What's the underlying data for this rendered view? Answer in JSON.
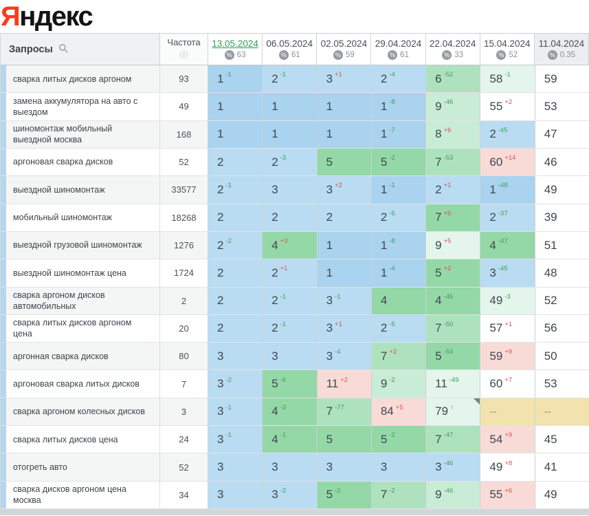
{
  "logo": {
    "red": "Я",
    "rest": "ндекс"
  },
  "header": {
    "queries_label": "Запросы",
    "frequency_label": "Частота",
    "icons": {
      "queries": "search-icon",
      "frequency": "globe-icon",
      "date_badge": "percent-icon"
    },
    "dates": [
      {
        "label": "13.05.2024",
        "value": "63",
        "active": true
      },
      {
        "label": "06.05.2024",
        "value": "61"
      },
      {
        "label": "02.05.2024",
        "value": "59"
      },
      {
        "label": "29.04.2024",
        "value": "61"
      },
      {
        "label": "22.04.2024",
        "value": "33"
      },
      {
        "label": "15.04.2024",
        "value": "52"
      },
      {
        "label": "11.04.2024",
        "value": "0.35",
        "muted": true
      }
    ]
  },
  "colors": {
    "accent_red": "#f93c1a",
    "active_date_green": "#2f9e52",
    "delta_up_green": "#3aa24f",
    "delta_down_red": "#d9534f",
    "cell_blue_pos1": "#a9d3ee",
    "cell_blue": "#b9dcf2",
    "cell_green_dark": "#94d8a8",
    "cell_green_mid": "#aee2bf",
    "cell_green_light": "#c9ecd6",
    "cell_green_pale": "#e4f5ec",
    "cell_pink": "#f8dbd7",
    "cell_yellow": "#f2e2ad",
    "row_stripe": "#f4f5f5",
    "marker_strip_blue": "#b7d6ed"
  },
  "rows": [
    {
      "query": "сварка литых дисков аргоном",
      "frequency": "93",
      "cells": [
        {
          "pos": "1",
          "delta": "-1",
          "dir": "up",
          "bg": "b1"
        },
        {
          "pos": "2",
          "delta": "-1",
          "dir": "up",
          "bg": "b2"
        },
        {
          "pos": "3",
          "delta": "+1",
          "dir": "down",
          "bg": "b2"
        },
        {
          "pos": "2",
          "delta": "-4",
          "dir": "up",
          "bg": "b2"
        },
        {
          "pos": "6",
          "delta": "-52",
          "dir": "up",
          "bg": "g2"
        },
        {
          "pos": "58",
          "delta": "-1",
          "dir": "up",
          "bg": "g4"
        },
        {
          "pos": "59",
          "bg": "w"
        }
      ]
    },
    {
      "query": "замена аккумулятора на авто с выездом",
      "frequency": "49",
      "cells": [
        {
          "pos": "1",
          "bg": "b1"
        },
        {
          "pos": "1",
          "bg": "b1"
        },
        {
          "pos": "1",
          "bg": "b1"
        },
        {
          "pos": "1",
          "delta": "-8",
          "dir": "up",
          "bg": "b1"
        },
        {
          "pos": "9",
          "delta": "-46",
          "dir": "up",
          "bg": "g3"
        },
        {
          "pos": "55",
          "delta": "+2",
          "dir": "down",
          "bg": "w"
        },
        {
          "pos": "53",
          "bg": "w"
        }
      ]
    },
    {
      "query": "шиномонтаж мобильный выездной москва",
      "frequency": "168",
      "cells": [
        {
          "pos": "1",
          "bg": "b1"
        },
        {
          "pos": "1",
          "bg": "b1"
        },
        {
          "pos": "1",
          "bg": "b1"
        },
        {
          "pos": "1",
          "delta": "-7",
          "dir": "up",
          "bg": "b1"
        },
        {
          "pos": "8",
          "delta": "+6",
          "dir": "down",
          "bg": "g3"
        },
        {
          "pos": "2",
          "delta": "-45",
          "dir": "up",
          "bg": "b2"
        },
        {
          "pos": "47",
          "bg": "w"
        }
      ]
    },
    {
      "query": "аргоновая сварка дисков",
      "frequency": "52",
      "cells": [
        {
          "pos": "2",
          "bg": "b2"
        },
        {
          "pos": "2",
          "delta": "-3",
          "dir": "up",
          "bg": "b2"
        },
        {
          "pos": "5",
          "bg": "g1"
        },
        {
          "pos": "5",
          "delta": "-2",
          "dir": "up",
          "bg": "g1"
        },
        {
          "pos": "7",
          "delta": "-53",
          "dir": "up",
          "bg": "g2"
        },
        {
          "pos": "60",
          "delta": "+14",
          "dir": "down",
          "bg": "p"
        },
        {
          "pos": "46",
          "bg": "w"
        }
      ]
    },
    {
      "query": "выездной шиномонтаж",
      "frequency": "33577",
      "cells": [
        {
          "pos": "2",
          "delta": "-1",
          "dir": "up",
          "bg": "b2"
        },
        {
          "pos": "3",
          "bg": "b2"
        },
        {
          "pos": "3",
          "delta": "+2",
          "dir": "down",
          "bg": "b2"
        },
        {
          "pos": "1",
          "delta": "-1",
          "dir": "up",
          "bg": "b1"
        },
        {
          "pos": "2",
          "delta": "+1",
          "dir": "down",
          "bg": "b2"
        },
        {
          "pos": "1",
          "delta": "-48",
          "dir": "up",
          "bg": "b1"
        },
        {
          "pos": "49",
          "bg": "w"
        }
      ]
    },
    {
      "query": "мобильный шиномонтаж",
      "frequency": "18268",
      "cells": [
        {
          "pos": "2",
          "bg": "b2"
        },
        {
          "pos": "2",
          "bg": "b2"
        },
        {
          "pos": "2",
          "bg": "b2"
        },
        {
          "pos": "2",
          "delta": "-5",
          "dir": "up",
          "bg": "b2"
        },
        {
          "pos": "7",
          "delta": "+5",
          "dir": "down",
          "bg": "g1"
        },
        {
          "pos": "2",
          "delta": "-37",
          "dir": "up",
          "bg": "b2"
        },
        {
          "pos": "39",
          "bg": "w"
        }
      ]
    },
    {
      "query": "выездной грузовой шиномонтаж",
      "frequency": "1276",
      "cells": [
        {
          "pos": "2",
          "delta": "-2",
          "dir": "up",
          "bg": "b2"
        },
        {
          "pos": "4",
          "delta": "+3",
          "dir": "down",
          "bg": "g1"
        },
        {
          "pos": "1",
          "bg": "b1"
        },
        {
          "pos": "1",
          "delta": "-8",
          "dir": "up",
          "bg": "b1"
        },
        {
          "pos": "9",
          "delta": "+5",
          "dir": "down",
          "bg": "g4"
        },
        {
          "pos": "4",
          "delta": "-47",
          "dir": "up",
          "bg": "g1"
        },
        {
          "pos": "51",
          "bg": "w"
        }
      ]
    },
    {
      "query": "выездной шиномонтаж цена",
      "frequency": "1724",
      "cells": [
        {
          "pos": "2",
          "bg": "b2"
        },
        {
          "pos": "2",
          "delta": "+1",
          "dir": "down",
          "bg": "b2"
        },
        {
          "pos": "1",
          "bg": "b1"
        },
        {
          "pos": "1",
          "delta": "-4",
          "dir": "up",
          "bg": "b1"
        },
        {
          "pos": "5",
          "delta": "+2",
          "dir": "down",
          "bg": "g1"
        },
        {
          "pos": "3",
          "delta": "-45",
          "dir": "up",
          "bg": "b2"
        },
        {
          "pos": "48",
          "bg": "w"
        }
      ]
    },
    {
      "query": "сварка аргоном дисков автомобильных",
      "frequency": "2",
      "cells": [
        {
          "pos": "2",
          "bg": "b2"
        },
        {
          "pos": "2",
          "delta": "-1",
          "dir": "up",
          "bg": "b2"
        },
        {
          "pos": "3",
          "delta": "-1",
          "dir": "up",
          "bg": "b2"
        },
        {
          "pos": "4",
          "bg": "g1"
        },
        {
          "pos": "4",
          "delta": "-45",
          "dir": "up",
          "bg": "g1"
        },
        {
          "pos": "49",
          "delta": "-3",
          "dir": "up",
          "bg": "g4"
        },
        {
          "pos": "52",
          "bg": "w"
        }
      ]
    },
    {
      "query": "сварка литых дисков аргоном цена",
      "frequency": "20",
      "cells": [
        {
          "pos": "2",
          "bg": "b2"
        },
        {
          "pos": "2",
          "delta": "-1",
          "dir": "up",
          "bg": "b2"
        },
        {
          "pos": "3",
          "delta": "+1",
          "dir": "down",
          "bg": "b2"
        },
        {
          "pos": "2",
          "delta": "-5",
          "dir": "up",
          "bg": "b2"
        },
        {
          "pos": "7",
          "delta": "-50",
          "dir": "up",
          "bg": "g2"
        },
        {
          "pos": "57",
          "delta": "+1",
          "dir": "down",
          "bg": "w"
        },
        {
          "pos": "56",
          "bg": "w"
        }
      ]
    },
    {
      "query": "аргонная сварка дисков",
      "frequency": "80",
      "cells": [
        {
          "pos": "3",
          "bg": "b2"
        },
        {
          "pos": "3",
          "bg": "b2"
        },
        {
          "pos": "3",
          "delta": "-4",
          "dir": "up",
          "bg": "b2"
        },
        {
          "pos": "7",
          "delta": "+2",
          "dir": "down",
          "bg": "g2"
        },
        {
          "pos": "5",
          "delta": "-54",
          "dir": "up",
          "bg": "g1"
        },
        {
          "pos": "59",
          "delta": "+9",
          "dir": "down",
          "bg": "p"
        },
        {
          "pos": "50",
          "bg": "w"
        }
      ]
    },
    {
      "query": "аргоновая сварка литых дисков",
      "frequency": "7",
      "cells": [
        {
          "pos": "3",
          "delta": "-2",
          "dir": "up",
          "bg": "b2"
        },
        {
          "pos": "5",
          "delta": "-6",
          "dir": "up",
          "bg": "g1"
        },
        {
          "pos": "11",
          "delta": "+2",
          "dir": "down",
          "bg": "p"
        },
        {
          "pos": "9",
          "delta": "-2",
          "dir": "up",
          "bg": "g3"
        },
        {
          "pos": "11",
          "delta": "-49",
          "dir": "up",
          "bg": "g4"
        },
        {
          "pos": "60",
          "delta": "+7",
          "dir": "down",
          "bg": "w"
        },
        {
          "pos": "53",
          "bg": "w"
        }
      ]
    },
    {
      "query": "сварка аргоном колесных дисков",
      "frequency": "3",
      "cells": [
        {
          "pos": "3",
          "delta": "-1",
          "dir": "up",
          "bg": "b2"
        },
        {
          "pos": "4",
          "delta": "-3",
          "dir": "up",
          "bg": "g1"
        },
        {
          "pos": "7",
          "delta": "-77",
          "dir": "up",
          "bg": "g2"
        },
        {
          "pos": "84",
          "delta": "+5",
          "dir": "down",
          "bg": "p"
        },
        {
          "pos": "79",
          "delta": "↑",
          "dir": "up",
          "bg": "g4",
          "flag": true
        },
        {
          "pos": "--",
          "bg": "y"
        },
        {
          "pos": "--",
          "bg": "y"
        }
      ]
    },
    {
      "query": "сварка литых дисков цена",
      "frequency": "24",
      "cells": [
        {
          "pos": "3",
          "delta": "-1",
          "dir": "up",
          "bg": "b2"
        },
        {
          "pos": "4",
          "delta": "-1",
          "dir": "up",
          "bg": "g1"
        },
        {
          "pos": "5",
          "bg": "g1"
        },
        {
          "pos": "5",
          "delta": "-2",
          "dir": "up",
          "bg": "g1"
        },
        {
          "pos": "7",
          "delta": "-47",
          "dir": "up",
          "bg": "g2"
        },
        {
          "pos": "54",
          "delta": "+9",
          "dir": "down",
          "bg": "p"
        },
        {
          "pos": "45",
          "bg": "w"
        }
      ]
    },
    {
      "query": "отогреть авто",
      "frequency": "52",
      "cells": [
        {
          "pos": "3",
          "bg": "b2"
        },
        {
          "pos": "3",
          "bg": "b2"
        },
        {
          "pos": "3",
          "bg": "b2"
        },
        {
          "pos": "3",
          "bg": "b2"
        },
        {
          "pos": "3",
          "delta": "-46",
          "dir": "up",
          "bg": "b2"
        },
        {
          "pos": "49",
          "delta": "+8",
          "dir": "down",
          "bg": "w"
        },
        {
          "pos": "41",
          "bg": "w"
        }
      ]
    },
    {
      "query": "сварка дисков аргоном цена москва",
      "frequency": "34",
      "cells": [
        {
          "pos": "3",
          "bg": "b2"
        },
        {
          "pos": "3",
          "delta": "-2",
          "dir": "up",
          "bg": "b2"
        },
        {
          "pos": "5",
          "delta": "-2",
          "dir": "up",
          "bg": "g1"
        },
        {
          "pos": "7",
          "delta": "-2",
          "dir": "up",
          "bg": "g2"
        },
        {
          "pos": "9",
          "delta": "-46",
          "dir": "up",
          "bg": "g3"
        },
        {
          "pos": "55",
          "delta": "+6",
          "dir": "down",
          "bg": "p"
        },
        {
          "pos": "49",
          "bg": "w"
        }
      ]
    }
  ]
}
